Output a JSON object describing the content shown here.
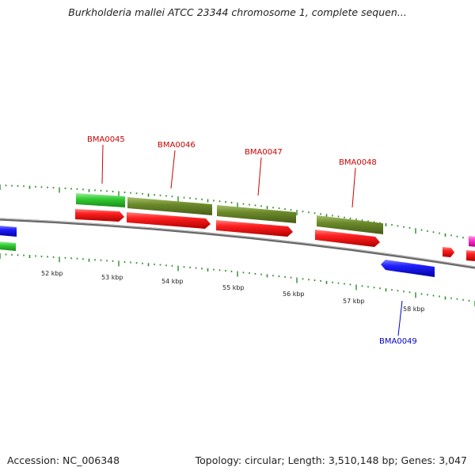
{
  "header": {
    "title": "Burkholderia mallei ATCC 23344 chromosome 1, complete sequen..."
  },
  "footer": {
    "accession": "Accession: NC_006348",
    "summary": "Topology: circular; Length: 3,510,148 bp; Genes: 3,047"
  },
  "colors": {
    "backbone": "#888888",
    "cds_forward": "#ff1a1a",
    "cds_reverse": "#1a1aff",
    "gene_light_green": "#33cc33",
    "gene_olive": "#6b8a2a",
    "magenta": "#ff33cc",
    "tick_green": "#2e8b2e",
    "label_red": "#cc0000",
    "label_blue": "#0000cc"
  },
  "scale_labels": [
    "52 kbp",
    "53 kbp",
    "54 kbp",
    "55 kbp",
    "56 kbp",
    "57 kbp",
    "58 kbp"
  ],
  "gene_labels": [
    {
      "text": "BMA0045",
      "strand": "forward"
    },
    {
      "text": "BMA0046",
      "strand": "forward"
    },
    {
      "text": "BMA0047",
      "strand": "forward"
    },
    {
      "text": "BMA0048",
      "strand": "forward"
    },
    {
      "text": "BMA0049",
      "strand": "reverse"
    }
  ]
}
